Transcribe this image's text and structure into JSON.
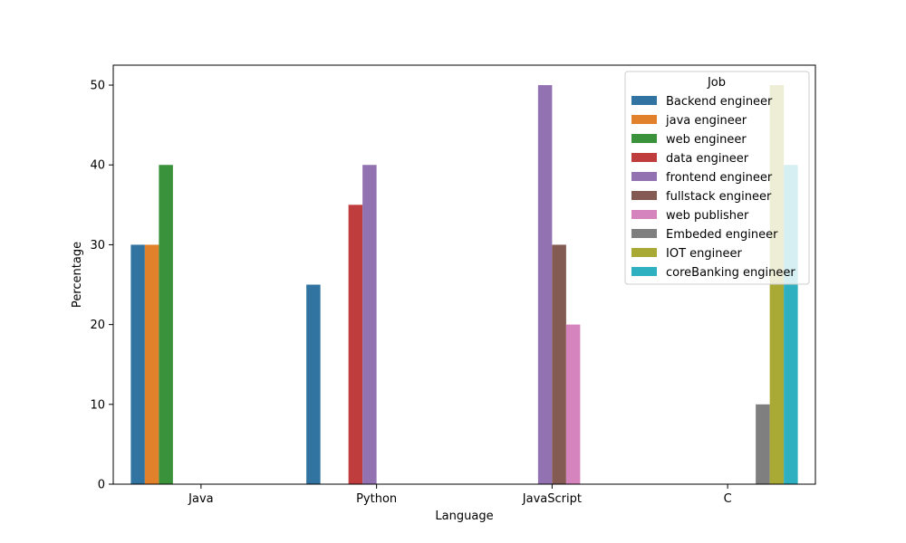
{
  "chart_data": {
    "type": "bar",
    "xlabel": "Language",
    "ylabel": "Percentage",
    "categories": [
      "Java",
      "Python",
      "JavaScript",
      "C"
    ],
    "ylim": [
      0,
      52.5
    ],
    "yticks": [
      0,
      10,
      20,
      30,
      40,
      50
    ],
    "grid": false,
    "legend": {
      "title": "Job",
      "placement": "top-right"
    },
    "series": [
      {
        "name": "Backend engineer",
        "color": "#3274a1",
        "values": [
          30,
          25,
          null,
          null
        ]
      },
      {
        "name": "java engineer",
        "color": "#e1812c",
        "values": [
          30,
          null,
          null,
          null
        ]
      },
      {
        "name": "web engineer",
        "color": "#3a923a",
        "values": [
          40,
          null,
          null,
          null
        ]
      },
      {
        "name": "data engineer",
        "color": "#c03d3e",
        "values": [
          null,
          35,
          null,
          null
        ]
      },
      {
        "name": "frontend engineer",
        "color": "#9372b2",
        "values": [
          null,
          40,
          50,
          null
        ]
      },
      {
        "name": "fullstack engineer",
        "color": "#845b53",
        "values": [
          null,
          null,
          30,
          null
        ]
      },
      {
        "name": "web publisher",
        "color": "#d684bd",
        "values": [
          null,
          null,
          20,
          null
        ]
      },
      {
        "name": "Embeded engineer",
        "color": "#7f7f7f",
        "values": [
          null,
          null,
          null,
          10
        ]
      },
      {
        "name": "IOT engineer",
        "color": "#a9aa35",
        "values": [
          null,
          null,
          null,
          50
        ]
      },
      {
        "name": "coreBanking engineer",
        "color": "#2eb0c1",
        "values": [
          null,
          null,
          null,
          40
        ]
      }
    ]
  }
}
